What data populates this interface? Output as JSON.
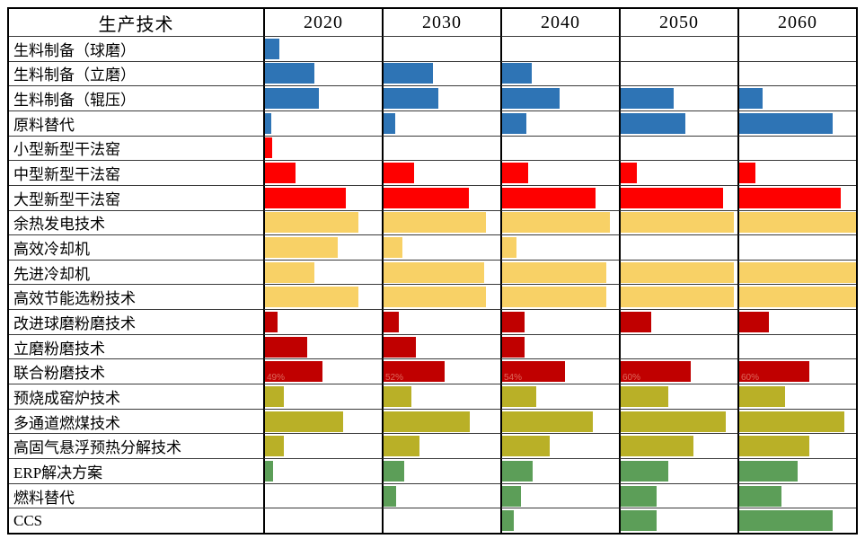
{
  "colors": {
    "blue": "#2e74b5",
    "red": "#fe0000",
    "yellow": "#f8d166",
    "dark_red": "#c00000",
    "olive": "#b9b027",
    "green": "#5c9e58",
    "value_label": "#de685c",
    "grid_line": "#3a3a3a",
    "border": "#000000"
  },
  "chart_data": {
    "type": "bar",
    "orientation": "horizontal",
    "header_label": "生产技术",
    "columns": [
      "2020",
      "2030",
      "2040",
      "2050",
      "2060"
    ],
    "value_unit": "percent_of_cell_width",
    "grid": true,
    "rows": [
      {
        "label": "生料制备（球磨）",
        "color_key": "blue",
        "values": [
          12,
          0,
          0,
          0,
          0
        ]
      },
      {
        "label": "生料制备（立磨）",
        "color_key": "blue",
        "values": [
          42,
          42,
          25,
          0,
          0
        ]
      },
      {
        "label": "生料制备（辊压）",
        "color_key": "blue",
        "values": [
          46,
          47,
          49,
          45,
          20
        ]
      },
      {
        "label": "原料替代",
        "color_key": "blue",
        "values": [
          5,
          10,
          21,
          55,
          80
        ]
      },
      {
        "label": "小型新型干法窑",
        "color_key": "red",
        "values": [
          6,
          0,
          0,
          0,
          0
        ]
      },
      {
        "label": "中型新型干法窑",
        "color_key": "red",
        "values": [
          26,
          26,
          22,
          14,
          14
        ]
      },
      {
        "label": "大型新型干法窑",
        "color_key": "red",
        "values": [
          69,
          73,
          80,
          88,
          87
        ]
      },
      {
        "label": "余热发电技术",
        "color_key": "yellow",
        "values": [
          80,
          88,
          92,
          97,
          100
        ]
      },
      {
        "label": "高效冷却机",
        "color_key": "yellow",
        "values": [
          62,
          16,
          12,
          0,
          0
        ]
      },
      {
        "label": "先进冷却机",
        "color_key": "yellow",
        "values": [
          42,
          86,
          89,
          97,
          100
        ]
      },
      {
        "label": "高效节能选粉技术",
        "color_key": "yellow",
        "values": [
          80,
          88,
          89,
          97,
          100
        ]
      },
      {
        "label": "改进球磨粉磨技术",
        "color_key": "dark_red",
        "values": [
          11,
          13,
          19,
          26,
          25
        ]
      },
      {
        "label": "立磨粉磨技术",
        "color_key": "dark_red",
        "values": [
          36,
          28,
          19,
          0,
          0
        ]
      },
      {
        "label": "联合粉磨技术",
        "color_key": "dark_red",
        "values": [
          49,
          52,
          54,
          60,
          60
        ],
        "value_labels": [
          "49%",
          "52%",
          "54%",
          "60%",
          "60%"
        ]
      },
      {
        "label": "预烧成窑炉技术",
        "color_key": "olive",
        "values": [
          16,
          24,
          29,
          41,
          39
        ]
      },
      {
        "label": "多通道燃煤技术",
        "color_key": "olive",
        "values": [
          67,
          74,
          78,
          90,
          90
        ]
      },
      {
        "label": "高固气悬浮预热分解技术",
        "color_key": "olive",
        "values": [
          16,
          31,
          41,
          62,
          60
        ]
      },
      {
        "label": "ERP解决方案",
        "color_key": "green",
        "values": [
          7,
          18,
          26,
          41,
          50
        ]
      },
      {
        "label": "燃料替代",
        "color_key": "green",
        "values": [
          0,
          11,
          16,
          31,
          36
        ]
      },
      {
        "label": "CCS",
        "color_key": "green",
        "values": [
          0,
          0,
          10,
          31,
          80
        ]
      }
    ]
  }
}
